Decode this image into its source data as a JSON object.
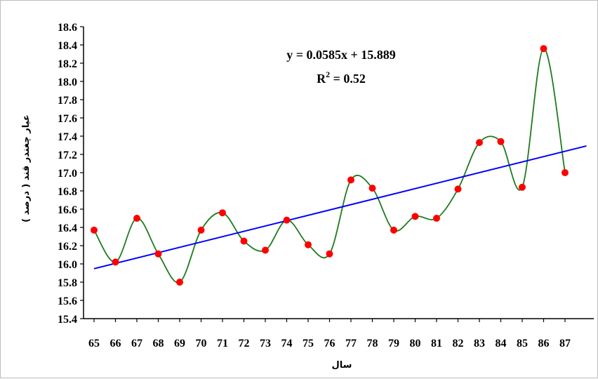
{
  "chart_data": {
    "type": "scatter",
    "xlabel": "سال",
    "ylabel": "عیار چغندر قند ( درصد )",
    "x": [
      65,
      66,
      67,
      68,
      69,
      70,
      71,
      72,
      73,
      74,
      75,
      76,
      77,
      78,
      79,
      80,
      81,
      82,
      83,
      84,
      85,
      86,
      87
    ],
    "y": [
      16.37,
      16.02,
      16.5,
      16.11,
      15.8,
      16.37,
      16.56,
      16.25,
      16.15,
      16.48,
      16.21,
      16.11,
      16.92,
      16.83,
      16.37,
      16.52,
      16.5,
      16.82,
      17.33,
      17.34,
      16.84,
      18.36,
      17.0
    ],
    "xlim": [
      65,
      87
    ],
    "ylim": [
      15.4,
      18.6
    ],
    "yticks": [
      "15.4",
      "15.6",
      "15.8",
      "16.0",
      "16.2",
      "16.4",
      "16.6",
      "16.8",
      "17.0",
      "17.2",
      "17.4",
      "17.6",
      "17.8",
      "18.0",
      "18.2",
      "18.4",
      "18.6"
    ],
    "xticks": [
      "65",
      "66",
      "67",
      "68",
      "69",
      "70",
      "71",
      "72",
      "73",
      "74",
      "75",
      "76",
      "77",
      "78",
      "79",
      "80",
      "81",
      "82",
      "83",
      "84",
      "85",
      "86",
      "87"
    ],
    "trendline": {
      "slope": 0.0585,
      "intercept": 15.889,
      "equation": "y = 0.0585x + 15.889",
      "r2_prefix": "R",
      "r2_sup": "2",
      "r2_suffix": " = 0.52",
      "x_start": 1,
      "x_end": 24
    },
    "colors": {
      "points": "#ff0000",
      "smooth_line": "#1f7a1f",
      "trend_line": "#0000ff",
      "axes": "#000000"
    },
    "grid": false,
    "legend": "none"
  }
}
